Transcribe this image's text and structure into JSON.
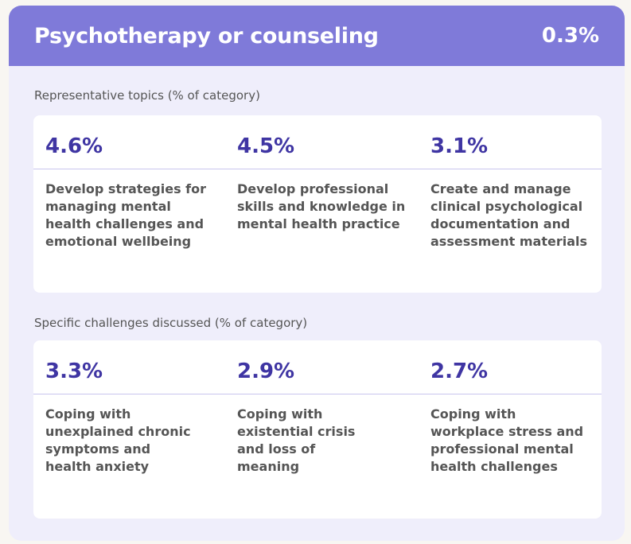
{
  "header": {
    "title": "Psychotherapy or counseling",
    "share": "0.3%"
  },
  "topics": {
    "label": "Representative topics (% of category)",
    "items": [
      {
        "value": "4.6%",
        "text": "Develop strategies for managing mental health challenges and emotional wellbeing"
      },
      {
        "value": "4.5%",
        "text": "Develop professional skills and knowledge in mental health practice"
      },
      {
        "value": "3.1%",
        "text": "Create and manage clinical psychological documentation and assessment materials"
      }
    ]
  },
  "challenges": {
    "label": "Specific challenges discussed (% of category)",
    "items": [
      {
        "value": "3.3%",
        "text": "Coping with unexplained chronic symptoms and health anxiety"
      },
      {
        "value": "2.9%",
        "text": "Coping with existential crisis and loss of meaning"
      },
      {
        "value": "2.7%",
        "text": "Coping with workplace stress and professional mental health challenges"
      }
    ]
  }
}
